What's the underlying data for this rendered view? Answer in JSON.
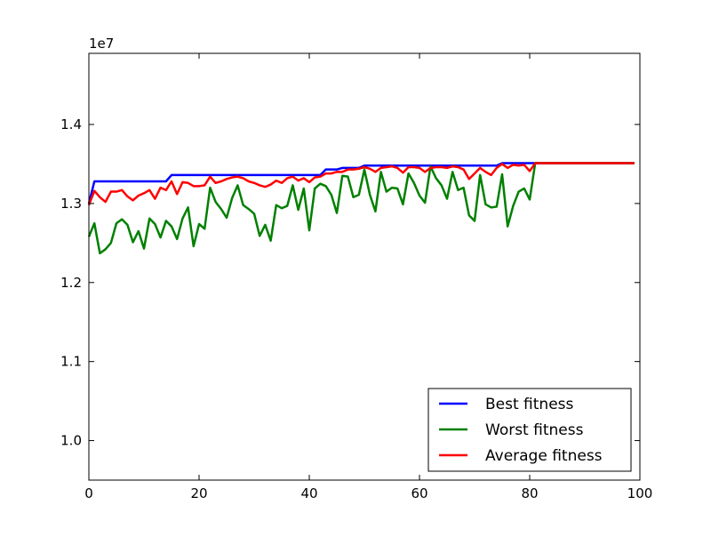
{
  "chart_data": {
    "type": "line",
    "title": "",
    "xlabel": "",
    "ylabel": "",
    "y_offset_text": "1e7",
    "y_multiplier": 10000000,
    "xlim": [
      0,
      100
    ],
    "ylim": [
      0.95,
      1.49
    ],
    "x_ticks": [
      0,
      20,
      40,
      60,
      80,
      100
    ],
    "x_tick_labels": [
      "0",
      "20",
      "40",
      "60",
      "80",
      "100"
    ],
    "y_ticks": [
      1.0,
      1.1,
      1.2,
      1.3,
      1.4
    ],
    "y_tick_labels": [
      "1.0",
      "1.1",
      "1.2",
      "1.3",
      "1.4"
    ],
    "grid": false,
    "legend_position": "bottom-right",
    "x": [
      0,
      1,
      2,
      3,
      4,
      5,
      6,
      7,
      8,
      9,
      10,
      11,
      12,
      13,
      14,
      15,
      16,
      17,
      18,
      19,
      20,
      21,
      22,
      23,
      24,
      25,
      26,
      27,
      28,
      29,
      30,
      31,
      32,
      33,
      34,
      35,
      36,
      37,
      38,
      39,
      40,
      41,
      42,
      43,
      44,
      45,
      46,
      47,
      48,
      49,
      50,
      51,
      52,
      53,
      54,
      55,
      56,
      57,
      58,
      59,
      60,
      61,
      62,
      63,
      64,
      65,
      66,
      67,
      68,
      69,
      70,
      71,
      72,
      73,
      74,
      75,
      76,
      77,
      78,
      79,
      80,
      81,
      82,
      83,
      84,
      85,
      86,
      87,
      88,
      89,
      90,
      91,
      92,
      93,
      94,
      95,
      96,
      97,
      98,
      99
    ],
    "series": [
      {
        "name": "Best fitness",
        "color": "#0000ff",
        "values": [
          1.3,
          1.328,
          1.328,
          1.328,
          1.328,
          1.328,
          1.328,
          1.328,
          1.328,
          1.328,
          1.328,
          1.328,
          1.328,
          1.328,
          1.328,
          1.336,
          1.336,
          1.336,
          1.336,
          1.336,
          1.336,
          1.336,
          1.336,
          1.336,
          1.336,
          1.336,
          1.336,
          1.336,
          1.336,
          1.336,
          1.336,
          1.336,
          1.336,
          1.336,
          1.336,
          1.336,
          1.336,
          1.336,
          1.336,
          1.336,
          1.336,
          1.336,
          1.336,
          1.343,
          1.343,
          1.343,
          1.345,
          1.345,
          1.345,
          1.345,
          1.348,
          1.348,
          1.348,
          1.348,
          1.348,
          1.348,
          1.348,
          1.348,
          1.348,
          1.348,
          1.348,
          1.348,
          1.348,
          1.348,
          1.348,
          1.348,
          1.348,
          1.348,
          1.348,
          1.348,
          1.348,
          1.348,
          1.348,
          1.348,
          1.348,
          1.351,
          1.351,
          1.351,
          1.351,
          1.351,
          1.351,
          1.351,
          1.351,
          1.351,
          1.351,
          1.351,
          1.351,
          1.351,
          1.351,
          1.351,
          1.351,
          1.351,
          1.351,
          1.351,
          1.351,
          1.351,
          1.351,
          1.351,
          1.351,
          1.351
        ]
      },
      {
        "name": "Worst fitness",
        "color": "#008000",
        "values": [
          1.258,
          1.275,
          1.237,
          1.242,
          1.25,
          1.275,
          1.28,
          1.273,
          1.251,
          1.265,
          1.243,
          1.281,
          1.274,
          1.257,
          1.278,
          1.271,
          1.255,
          1.281,
          1.295,
          1.246,
          1.274,
          1.268,
          1.32,
          1.302,
          1.293,
          1.282,
          1.307,
          1.323,
          1.298,
          1.293,
          1.287,
          1.259,
          1.273,
          1.253,
          1.298,
          1.294,
          1.297,
          1.323,
          1.292,
          1.319,
          1.266,
          1.319,
          1.325,
          1.322,
          1.311,
          1.288,
          1.335,
          1.334,
          1.308,
          1.311,
          1.343,
          1.311,
          1.29,
          1.34,
          1.315,
          1.32,
          1.319,
          1.299,
          1.338,
          1.326,
          1.31,
          1.301,
          1.347,
          1.332,
          1.323,
          1.306,
          1.34,
          1.317,
          1.32,
          1.285,
          1.278,
          1.336,
          1.299,
          1.295,
          1.296,
          1.337,
          1.271,
          1.297,
          1.315,
          1.319,
          1.305,
          1.351,
          1.351,
          1.351,
          1.351,
          1.351,
          1.351,
          1.351,
          1.351,
          1.351,
          1.351,
          1.351,
          1.351,
          1.351,
          1.351,
          1.351,
          1.351,
          1.351,
          1.351,
          1.351
        ]
      },
      {
        "name": "Average fitness",
        "color": "#ff0000",
        "values": [
          1.298,
          1.316,
          1.308,
          1.302,
          1.315,
          1.315,
          1.317,
          1.309,
          1.304,
          1.31,
          1.313,
          1.317,
          1.306,
          1.32,
          1.317,
          1.328,
          1.312,
          1.327,
          1.326,
          1.322,
          1.322,
          1.323,
          1.334,
          1.326,
          1.328,
          1.331,
          1.333,
          1.334,
          1.332,
          1.328,
          1.326,
          1.323,
          1.321,
          1.324,
          1.329,
          1.326,
          1.332,
          1.334,
          1.329,
          1.332,
          1.327,
          1.333,
          1.334,
          1.338,
          1.338,
          1.34,
          1.34,
          1.343,
          1.343,
          1.344,
          1.346,
          1.344,
          1.34,
          1.345,
          1.346,
          1.347,
          1.345,
          1.339,
          1.346,
          1.346,
          1.345,
          1.34,
          1.345,
          1.346,
          1.346,
          1.345,
          1.347,
          1.346,
          1.343,
          1.331,
          1.338,
          1.345,
          1.34,
          1.336,
          1.345,
          1.35,
          1.345,
          1.349,
          1.348,
          1.349,
          1.341,
          1.351,
          1.351,
          1.351,
          1.351,
          1.351,
          1.351,
          1.351,
          1.351,
          1.351,
          1.351,
          1.351,
          1.351,
          1.351,
          1.351,
          1.351,
          1.351,
          1.351,
          1.351,
          1.351
        ]
      }
    ]
  }
}
